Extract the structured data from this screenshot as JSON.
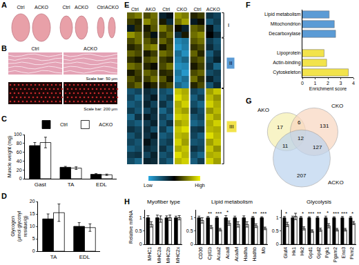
{
  "images": [
    {
      "panel_label": "A",
      "labels": [
        "Ctrl",
        "ACKO",
        "Ctrl",
        "ACKO",
        "Ctrl",
        "ACKO"
      ]
    },
    {
      "panel_label": "B",
      "labels": [
        "Ctrl",
        "ACKO"
      ],
      "scale_bars": [
        "Scale bar: 50 μm",
        "Scale bar: 200 μm"
      ]
    }
  ],
  "chart_data": [
    {
      "panel_label": "C",
      "type": "bar",
      "categories": [
        "Gast",
        "TA",
        "EDL"
      ],
      "y_label": "Muscle weight (mg)",
      "ylim": [
        0,
        100
      ],
      "yticks": [
        0,
        20,
        40,
        60,
        80,
        100
      ],
      "legend": "top right",
      "series": [
        {
          "name": "Ctrl",
          "color": "#000000",
          "values": [
            75,
            26,
            10
          ],
          "errors": [
            7,
            2,
            1.5
          ]
        },
        {
          "name": "ACKO",
          "color": "#ffffff",
          "values": [
            82,
            24,
            9
          ],
          "errors": [
            12,
            3,
            1.5
          ]
        }
      ]
    },
    {
      "panel_label": "D",
      "type": "bar",
      "categories": [
        "TA",
        "EDL"
      ],
      "y_label": "Glycogen\n(μmol glycosyl\nresidue/g)",
      "ylim": [
        0,
        20
      ],
      "yticks": [
        0,
        5,
        10,
        15,
        20
      ],
      "series": [
        {
          "name": "Ctrl",
          "color": "#000000",
          "values": [
            13,
            10
          ],
          "errors": [
            2,
            1.5
          ]
        },
        {
          "name": "ACKO",
          "color": "#ffffff",
          "values": [
            15.5,
            9.5
          ],
          "errors": [
            3.5,
            1.5
          ]
        }
      ]
    },
    {
      "panel_label": "E",
      "type": "heatmap",
      "groups": [
        "Ctrl",
        "AKO",
        "Ctrl",
        "CKO",
        "Ctrl",
        "ACKO"
      ],
      "tick_labels": "x",
      "zlim": [
        -2,
        2
      ],
      "colors": [
        "#2aa8e0",
        "#000000",
        "#f5f500"
      ],
      "colorbar_ticks": [
        {
          "value": -2,
          "label": "Low"
        },
        {
          "value": 2,
          "label": "High"
        }
      ],
      "clusters": [
        {
          "label": "I",
          "rows": [
            0,
            3
          ]
        },
        {
          "label": "II",
          "rows": [
            4,
            11
          ],
          "color": "#5b9bd5"
        },
        {
          "label": "III",
          "rows": [
            12,
            23
          ],
          "color": "#f2e34b"
        }
      ],
      "cells": [
        [
          0.8,
          1.0,
          0.6,
          0.9,
          -0.4,
          -0.2,
          1.2,
          1.0,
          0.3,
          0.5,
          -0.6,
          -0.8
        ],
        [
          0.5,
          0.3,
          1.1,
          0.8,
          0.2,
          -0.5,
          0.9,
          1.3,
          -0.3,
          0.1,
          -1.0,
          -0.7
        ],
        [
          -0.3,
          0.4,
          0.2,
          0.7,
          1.0,
          0.6,
          0.1,
          -0.4,
          0.8,
          0.6,
          -0.2,
          -0.9
        ],
        [
          1.2,
          0.9,
          0.4,
          -0.2,
          0.5,
          0.8,
          -0.6,
          0.2,
          0.9,
          1.1,
          0.0,
          -0.5
        ],
        [
          0.6,
          0.9,
          0.7,
          0.4,
          0.8,
          0.5,
          -1.6,
          -1.4,
          0.7,
          0.9,
          -0.7,
          -1.0
        ],
        [
          0.3,
          0.5,
          0.9,
          1.1,
          0.2,
          0.6,
          -1.8,
          -1.5,
          0.4,
          0.6,
          -0.5,
          -0.9
        ],
        [
          0.8,
          0.6,
          0.2,
          0.5,
          0.9,
          0.7,
          -1.3,
          -1.7,
          0.8,
          0.3,
          -1.1,
          -0.6
        ],
        [
          0.4,
          0.2,
          0.6,
          0.8,
          0.5,
          0.3,
          -1.5,
          -1.2,
          0.5,
          0.7,
          -0.8,
          -0.4
        ],
        [
          0.9,
          0.7,
          0.3,
          0.1,
          0.6,
          0.9,
          -1.7,
          -1.6,
          0.2,
          0.5,
          -0.6,
          -1.2
        ],
        [
          0.2,
          0.5,
          0.8,
          0.6,
          0.3,
          0.4,
          -1.4,
          -1.8,
          0.6,
          0.8,
          -0.9,
          -0.7
        ],
        [
          0.7,
          0.4,
          0.5,
          0.9,
          0.7,
          0.2,
          -1.6,
          -1.3,
          0.9,
          0.4,
          -0.4,
          -0.8
        ],
        [
          0.5,
          0.8,
          0.1,
          0.3,
          0.4,
          0.6,
          -1.2,
          -1.5,
          0.3,
          0.6,
          -1.0,
          -0.5
        ],
        [
          -1.0,
          -0.8,
          -0.5,
          -0.7,
          -0.9,
          -1.1,
          1.6,
          1.4,
          -0.8,
          -1.0,
          1.3,
          1.6
        ],
        [
          -0.8,
          -1.2,
          -0.6,
          -0.3,
          -1.0,
          -0.7,
          1.8,
          1.5,
          -1.1,
          -0.7,
          1.5,
          1.2
        ],
        [
          -1.1,
          -0.9,
          -0.4,
          -0.8,
          -0.6,
          -1.0,
          1.4,
          1.7,
          -0.9,
          -1.2,
          1.7,
          1.4
        ],
        [
          -0.7,
          -1.0,
          -0.8,
          -0.5,
          -1.2,
          -0.8,
          1.5,
          1.3,
          -0.6,
          -0.9,
          1.2,
          1.5
        ],
        [
          -1.2,
          -0.6,
          -0.3,
          -0.6,
          -0.8,
          -1.1,
          1.7,
          1.6,
          -1.0,
          -0.8,
          1.6,
          1.3
        ],
        [
          -0.9,
          -1.1,
          -0.7,
          -0.4,
          -1.0,
          -0.6,
          1.3,
          1.5,
          -1.2,
          -1.0,
          1.4,
          1.7
        ],
        [
          -0.6,
          -0.8,
          -0.5,
          -0.9,
          -0.7,
          -1.2,
          1.6,
          1.8,
          -0.7,
          -0.6,
          1.5,
          1.4
        ],
        [
          -1.0,
          -0.7,
          -0.6,
          -0.3,
          -1.1,
          -0.9,
          1.5,
          1.4,
          -0.8,
          -1.1,
          1.8,
          1.5
        ],
        [
          -0.8,
          -1.0,
          -0.2,
          -0.6,
          -0.9,
          -0.7,
          1.7,
          1.3,
          -1.0,
          -0.9,
          1.3,
          1.6
        ],
        [
          -1.1,
          -0.9,
          -0.5,
          -0.7,
          -0.6,
          -1.0,
          1.4,
          1.6,
          -0.6,
          -0.8,
          1.6,
          1.2
        ],
        [
          -0.7,
          -0.6,
          -0.8,
          -0.4,
          -1.0,
          -0.8,
          1.8,
          1.5,
          -0.9,
          -1.2,
          1.4,
          1.5
        ],
        [
          -0.9,
          -1.2,
          -0.4,
          -0.5,
          -0.8,
          -1.1,
          1.5,
          1.7,
          -1.1,
          -0.7,
          1.7,
          1.3
        ]
      ]
    },
    {
      "panel_label": "F",
      "type": "bar",
      "orientation": "horizontal",
      "categories": [
        "Lipid metabolism",
        "Mitochondrion",
        "Decarboxylase",
        null,
        "Lipoprotein",
        "Actin-binding",
        "Cytoskeleton"
      ],
      "values": [
        2.1,
        2.5,
        2.6,
        null,
        1.7,
        1.9,
        3.6
      ],
      "colors": [
        "#5b9bd5",
        "#5b9bd5",
        "#5b9bd5",
        null,
        "#f2e34b",
        "#f2e34b",
        "#f2e34b"
      ],
      "x_label": "Enrichment score",
      "xlim": [
        0,
        4
      ],
      "xticks": [
        0,
        1,
        2,
        3,
        4
      ]
    },
    {
      "panel_label": "G",
      "type": "venn",
      "sets": [
        "AKO",
        "CKO",
        "ACKO"
      ],
      "colors": [
        "#f6f0b0",
        "#f9d6c0",
        "#bcd3ee"
      ],
      "regions": [
        {
          "sets": [
            "AKO"
          ],
          "value": 17
        },
        {
          "sets": [
            "CKO"
          ],
          "value": 131
        },
        {
          "sets": [
            "ACKO"
          ],
          "value": 207
        },
        {
          "sets": [
            "AKO",
            "CKO"
          ],
          "value": 6
        },
        {
          "sets": [
            "AKO",
            "ACKO"
          ],
          "value": 11
        },
        {
          "sets": [
            "CKO",
            "ACKO"
          ],
          "value": 127
        },
        {
          "sets": [
            "AKO",
            "CKO",
            "ACKO"
          ],
          "value": 12
        }
      ]
    },
    {
      "panel_label": "H",
      "type": "bar",
      "title": "Myofiber type",
      "y_label": "Relative mRNA",
      "categories": [
        "MHC1",
        "MHC2a",
        "MHC2b",
        "MHC2x"
      ],
      "ylim": [
        0,
        1.3
      ],
      "yticks": [
        0,
        0.5,
        1
      ],
      "significance": [
        null,
        null,
        null,
        null
      ],
      "series": [
        {
          "name": "Ctrl",
          "color": "#000000",
          "values": [
            1,
            1,
            1,
            1
          ],
          "errors": [
            0.08,
            0.1,
            0.07,
            0.06
          ]
        },
        {
          "name": "ACKO",
          "color": "#ffffff",
          "values": [
            0.75,
            0.95,
            1.0,
            1.0
          ],
          "errors": [
            0.1,
            0.12,
            0.1,
            0.08
          ]
        }
      ]
    },
    {
      "type": "bar",
      "title": "Lipid metabolism",
      "categories": [
        "CD36",
        "Cpt1b",
        "Acaa2",
        "Acadl",
        "Acadvl",
        "Hadha",
        "Hadhb",
        "Mb"
      ],
      "ylim": [
        0,
        1.3
      ],
      "yticks": [
        0,
        0.5,
        1
      ],
      "significance": [
        null,
        "**",
        "***",
        "*",
        null,
        null,
        "**",
        "***"
      ],
      "series": [
        {
          "name": "Ctrl",
          "color": "#000000",
          "values": [
            1,
            1,
            1,
            1,
            1,
            1,
            1,
            1
          ],
          "errors": [
            0.06,
            0.05,
            0.05,
            0.08,
            0.06,
            0.07,
            0.05,
            0.04
          ]
        },
        {
          "name": "ACKO",
          "color": "#ffffff",
          "values": [
            0.9,
            0.65,
            0.55,
            0.8,
            0.75,
            0.75,
            0.7,
            0.6
          ],
          "errors": [
            0.1,
            0.06,
            0.05,
            0.08,
            0.1,
            0.1,
            0.07,
            0.05
          ]
        }
      ]
    },
    {
      "type": "bar",
      "title": "Glycolysis",
      "categories": [
        "Glut4",
        "Hk1",
        "Hk2",
        "Gpd1",
        "Gpd2",
        "Pgk1",
        "Pgam2",
        "Eno3",
        "Pkm2"
      ],
      "ylim": [
        0,
        1.3
      ],
      "yticks": [
        0,
        0.5,
        1
      ],
      "significance": [
        "*",
        null,
        "*",
        "***",
        "**",
        "*",
        "***",
        "***",
        "*"
      ],
      "series": [
        {
          "name": "Ctrl",
          "color": "#000000",
          "values": [
            1,
            1,
            1,
            1,
            1,
            1,
            1,
            1,
            1
          ],
          "errors": [
            0.05,
            0.06,
            0.05,
            0.04,
            0.05,
            0.06,
            0.04,
            0.05,
            0.05
          ]
        },
        {
          "name": "ACKO",
          "color": "#ffffff",
          "values": [
            0.75,
            1.05,
            0.6,
            0.5,
            0.55,
            0.7,
            0.55,
            0.55,
            0.8
          ],
          "errors": [
            0.08,
            0.12,
            0.06,
            0.05,
            0.06,
            0.08,
            0.05,
            0.05,
            0.06
          ]
        }
      ]
    }
  ]
}
